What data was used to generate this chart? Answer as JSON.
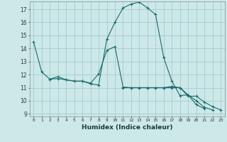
{
  "title": "",
  "xlabel": "Humidex (Indice chaleur)",
  "bg_color": "#cce8e8",
  "grid_color": "#a8cccc",
  "line_color": "#1a6b6b",
  "xlim": [
    -0.5,
    23.5
  ],
  "ylim": [
    8.8,
    17.6
  ],
  "yticks": [
    9,
    10,
    11,
    12,
    13,
    14,
    15,
    16,
    17
  ],
  "xticks": [
    0,
    1,
    2,
    3,
    4,
    5,
    6,
    7,
    8,
    9,
    10,
    11,
    12,
    13,
    14,
    15,
    16,
    17,
    18,
    19,
    20,
    21,
    22,
    23
  ],
  "series": [
    {
      "x": [
        0,
        1,
        2,
        3,
        4,
        5,
        6,
        7,
        8,
        9,
        10,
        11,
        12,
        13,
        14,
        15,
        16,
        17,
        18,
        19,
        20,
        21
      ],
      "y": [
        14.5,
        12.2,
        11.65,
        11.85,
        11.6,
        11.5,
        11.5,
        11.3,
        11.2,
        14.7,
        16.0,
        17.1,
        17.4,
        17.55,
        17.1,
        16.6,
        13.3,
        11.5,
        10.4,
        10.45,
        9.7,
        9.4
      ]
    },
    {
      "x": [
        2,
        3,
        4,
        5,
        6,
        7,
        8,
        9,
        10,
        11,
        12,
        13,
        14,
        15,
        16,
        17,
        18,
        19,
        20,
        21,
        22
      ],
      "y": [
        11.65,
        11.7,
        11.6,
        11.5,
        11.5,
        11.35,
        12.05,
        13.85,
        14.15,
        11.05,
        11.0,
        11.0,
        11.0,
        11.0,
        11.0,
        11.1,
        11.0,
        10.45,
        10.0,
        9.5,
        9.3
      ]
    },
    {
      "x": [
        11,
        12,
        13,
        14,
        15,
        16,
        17,
        18,
        19,
        20,
        21,
        22,
        23
      ],
      "y": [
        11.0,
        11.0,
        11.0,
        11.0,
        11.0,
        11.0,
        11.0,
        11.0,
        10.35,
        10.35,
        9.9,
        9.55,
        9.3
      ]
    }
  ]
}
